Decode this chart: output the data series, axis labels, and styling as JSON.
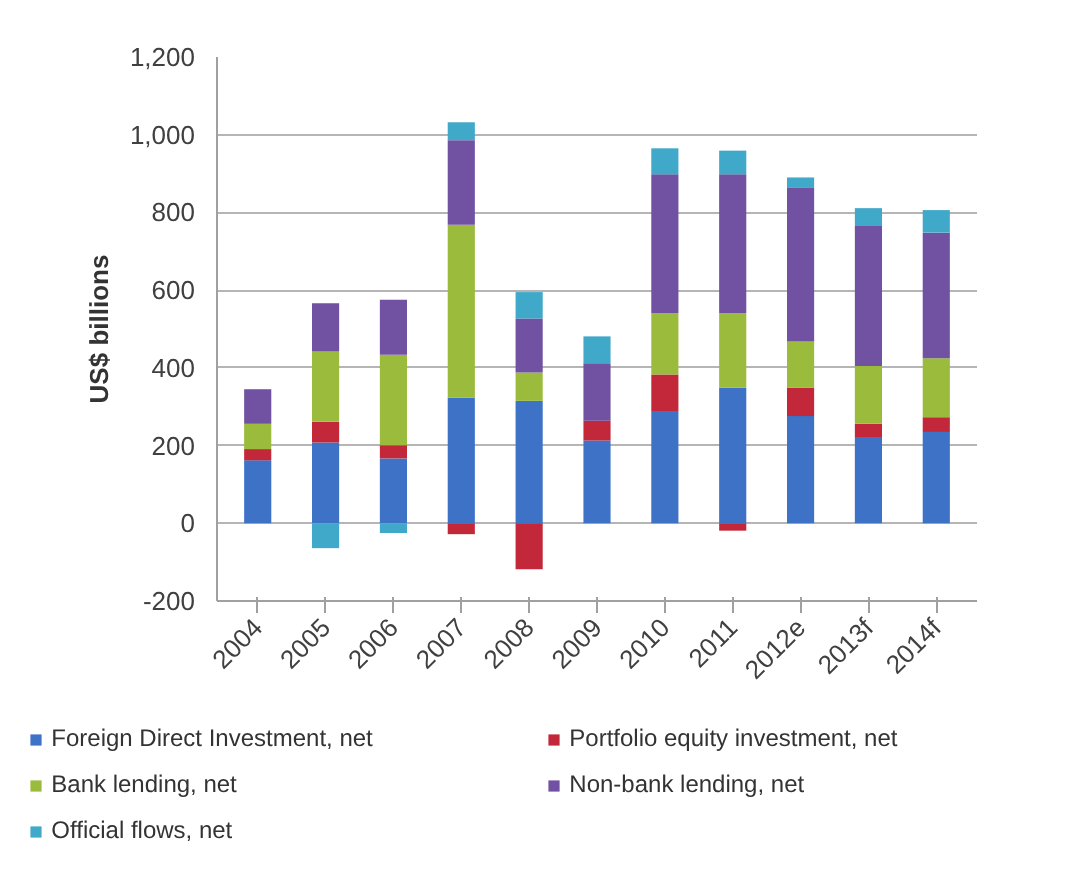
{
  "chart_data": {
    "type": "bar",
    "stacked": true,
    "ylabel": "US$ billions",
    "categories": [
      "2004",
      "2005",
      "2006",
      "2007",
      "2008",
      "2009",
      "2010",
      "2011",
      "2012e",
      "2013f",
      "2014f"
    ],
    "series": [
      {
        "name": "Foreign Direct Investment, net",
        "color": "#3d72c6",
        "values": [
          162,
          208,
          167,
          323,
          315,
          213,
          289,
          349,
          276,
          222,
          235
        ]
      },
      {
        "name": "Portfolio equity investment, net",
        "color": "#c3283a",
        "values": [
          29,
          53,
          34,
          -28,
          -118,
          51,
          94,
          -19,
          73,
          34,
          38
        ]
      },
      {
        "name": "Bank lending, net",
        "color": "#9abb3c",
        "values": [
          65,
          181,
          233,
          445,
          73,
          0,
          158,
          192,
          119,
          149,
          152
        ]
      },
      {
        "name": "Non-bank lending, net",
        "color": "#7151a1",
        "values": [
          89,
          124,
          141,
          218,
          139,
          148,
          357,
          357,
          395,
          360,
          323
        ]
      },
      {
        "name": "Official flows, net",
        "color": "#40a8c9",
        "values": [
          0,
          -64,
          -25,
          46,
          68,
          69,
          67,
          61,
          27,
          46,
          58
        ]
      }
    ],
    "ylim": [
      -200,
      1200
    ],
    "yticks": [
      -200,
      0,
      200,
      400,
      600,
      800,
      {
        "value": 1000,
        "label": "1,000"
      },
      {
        "value": 1200,
        "label": "1,200"
      }
    ],
    "grid": "y",
    "legend": "bottom"
  }
}
